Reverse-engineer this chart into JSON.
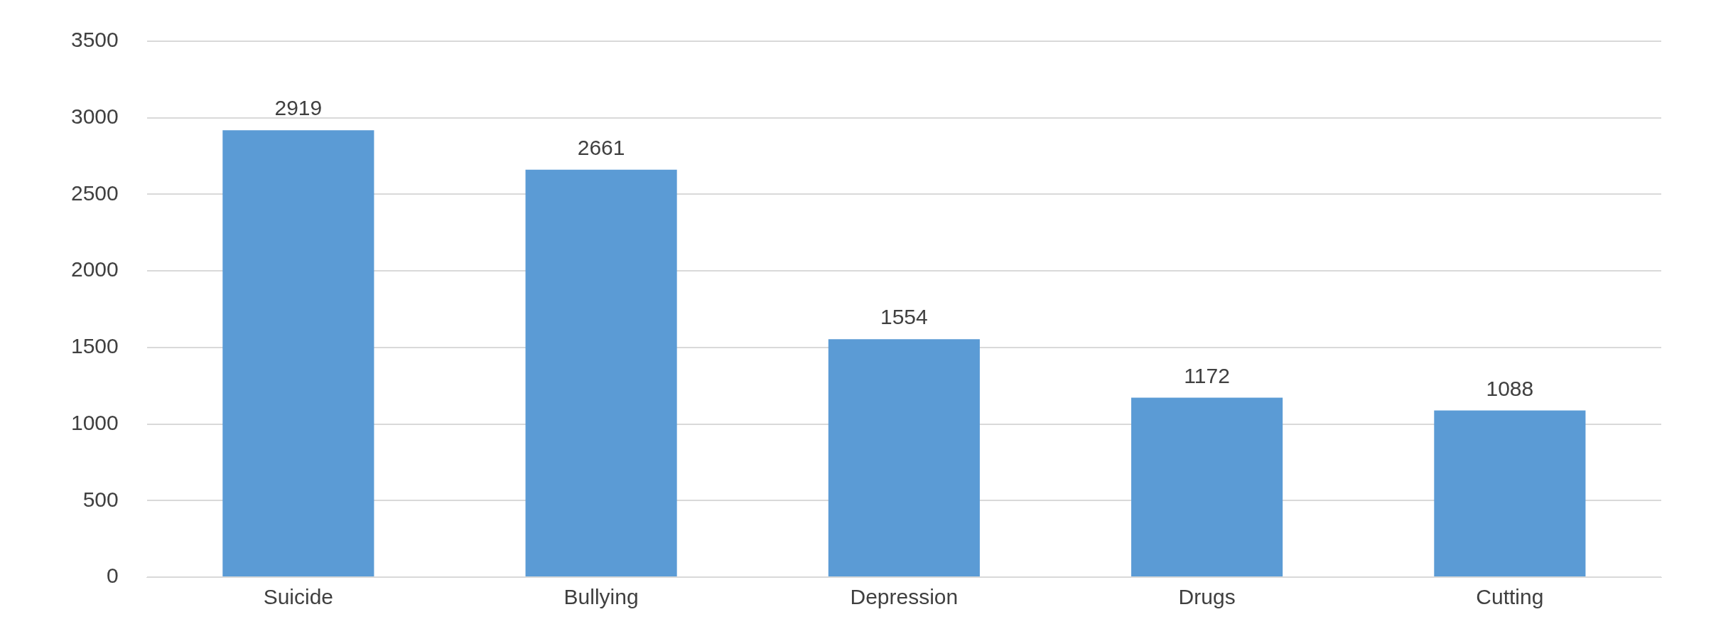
{
  "chart_data": {
    "type": "bar",
    "categories": [
      "Suicide",
      "Bullying",
      "Depression",
      "Drugs",
      "Cutting"
    ],
    "values": [
      2919,
      2661,
      1554,
      1172,
      1088
    ],
    "color": "#5b9bd5",
    "ylim": [
      0,
      3500
    ],
    "yticks": [
      0,
      500,
      1000,
      1500,
      2000,
      2500,
      3000,
      3500
    ],
    "grid": "y",
    "legend": false,
    "data_labels": true
  }
}
